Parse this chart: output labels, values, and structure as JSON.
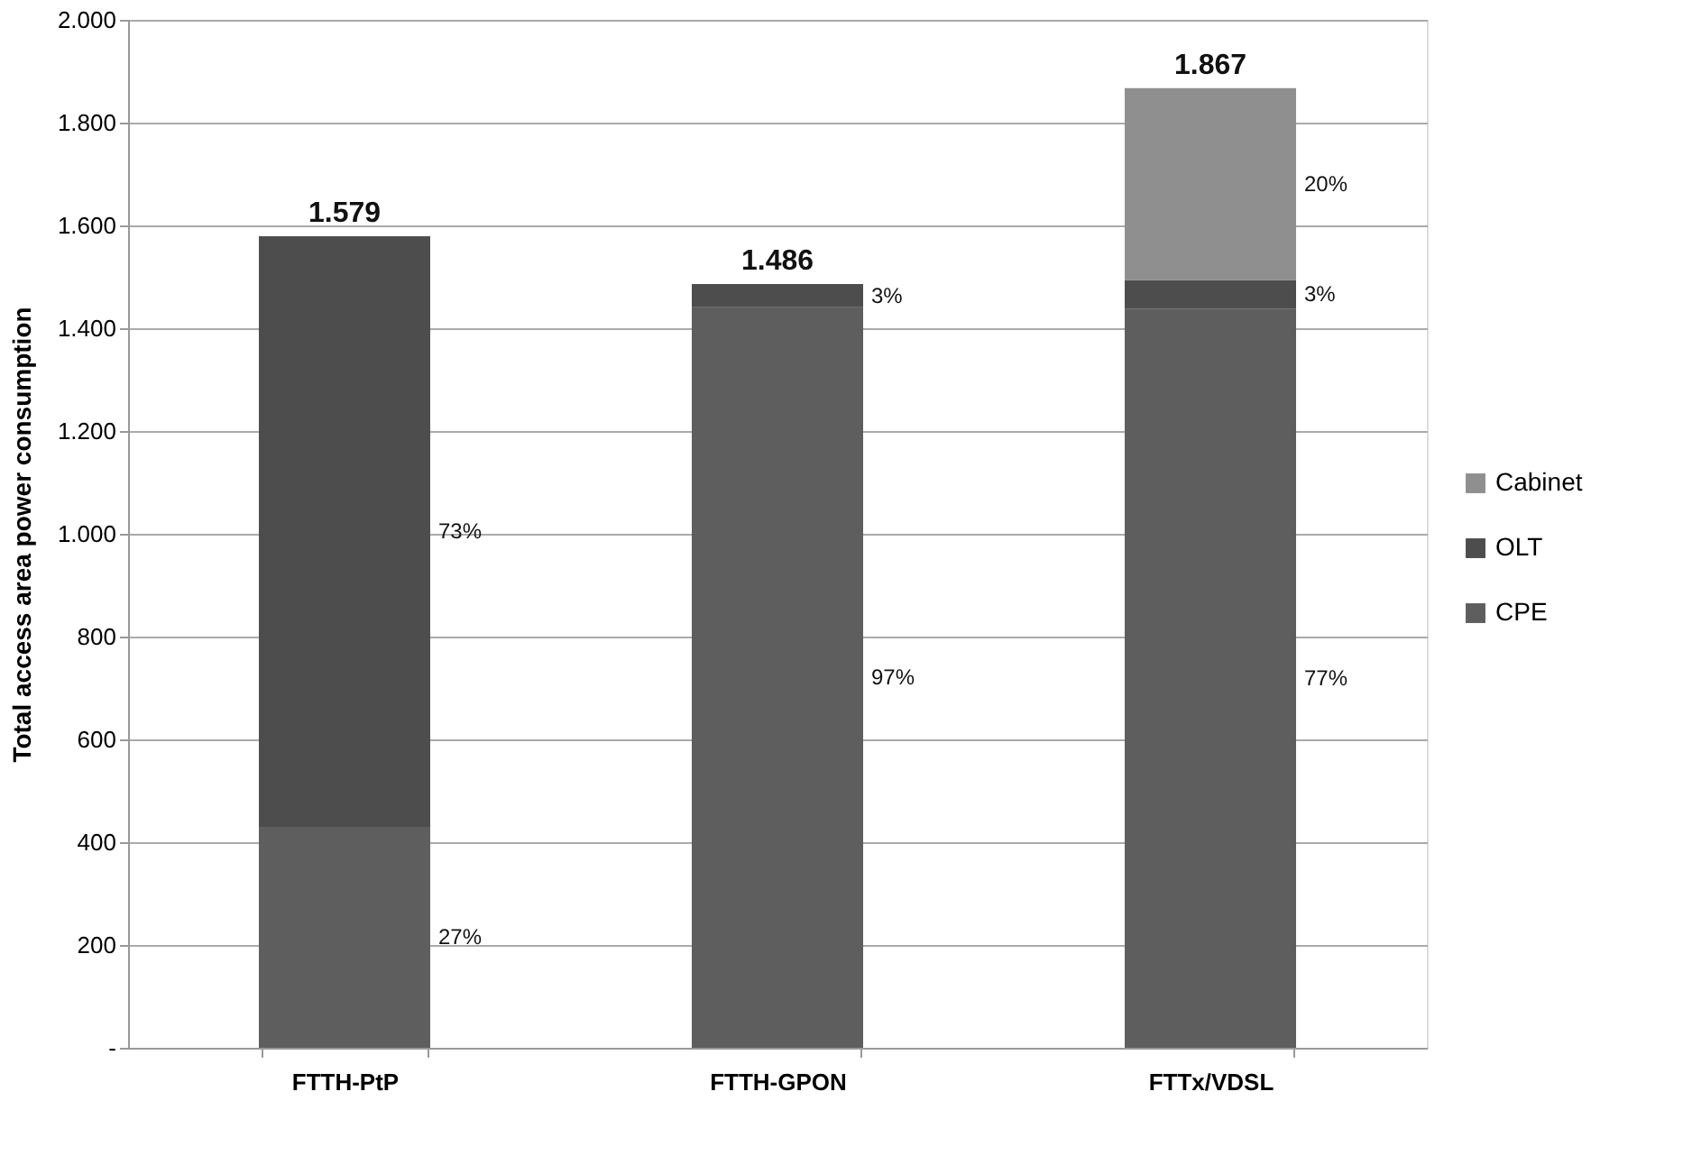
{
  "chart_data": {
    "type": "bar",
    "stacked": true,
    "ylabel": "Total access area power consumption",
    "categories": [
      "FTTH-PtP",
      "FTTH-GPON",
      "FTTx/VDSL"
    ],
    "series": [
      {
        "name": "CPE",
        "color": "#5e5e5e",
        "values": [
          430,
          1441,
          1438
        ]
      },
      {
        "name": "OLT",
        "color": "#4d4d4d",
        "values": [
          1149,
          45,
          56
        ]
      },
      {
        "name": "Cabinet",
        "color": "#8f8f8f",
        "values": [
          null,
          null,
          373
        ]
      }
    ],
    "totals": [
      "1.579",
      "1.486",
      "1.867"
    ],
    "annotations": [
      "27%",
      "73%",
      "97%",
      "3%",
      "77%",
      "3%",
      "20%"
    ],
    "ylim": [
      0,
      2000
    ],
    "yticks": [
      {
        "value": 0,
        "label": "-"
      },
      200,
      400,
      600,
      800,
      {
        "value": 1000,
        "label": "1.000"
      },
      {
        "value": 1200,
        "label": "1.200"
      },
      {
        "value": 1400,
        "label": "1.400"
      },
      {
        "value": 1600,
        "label": "1.600"
      },
      {
        "value": 1800,
        "label": "1.800"
      },
      {
        "value": 2000,
        "label": "2.000"
      }
    ],
    "grid": "y",
    "legend": "right"
  }
}
